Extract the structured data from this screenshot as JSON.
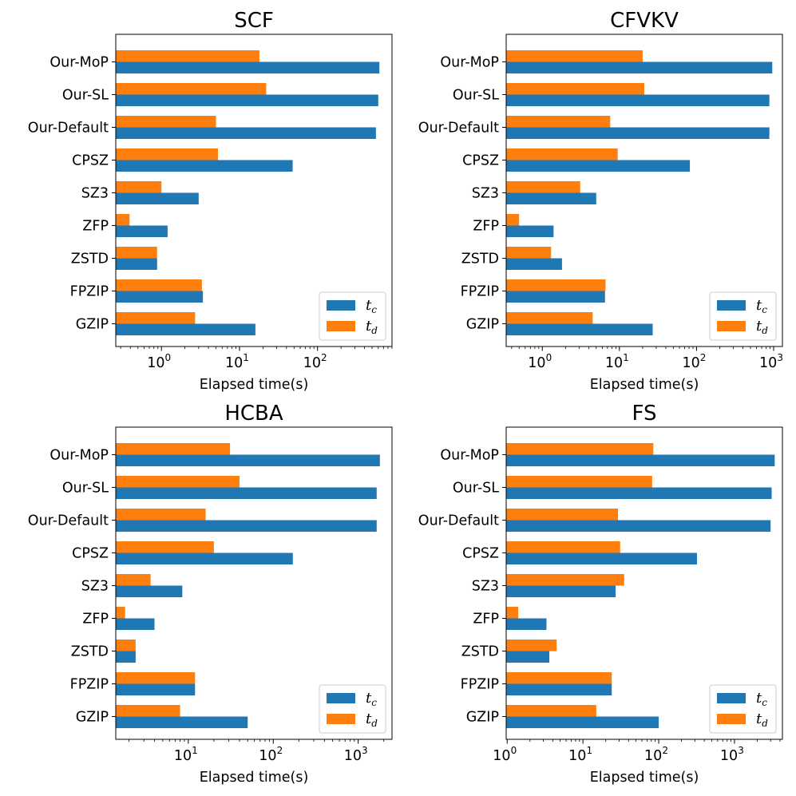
{
  "colors": {
    "t_c": "#1f77b4",
    "t_d": "#ff7f0e",
    "axis": "#000000",
    "legend_border": "#cccccc"
  },
  "chart_data": [
    {
      "type": "bar",
      "orientation": "horizontal",
      "title": "SCF",
      "xlabel": "Elapsed time(s)",
      "ylabel": "",
      "xscale": "log",
      "xlim": [
        0.26,
        900
      ],
      "xticks": [
        {
          "base": "10",
          "exp": "0",
          "value": 1
        },
        {
          "base": "10",
          "exp": "1",
          "value": 10
        },
        {
          "base": "10",
          "exp": "2",
          "value": 100
        }
      ],
      "legend_location": "lower right",
      "categories": [
        "Our-MoP",
        "Our-SL",
        "Our-Default",
        "CPSZ",
        "SZ3",
        "ZFP",
        "ZSTD",
        "FPZIP",
        "GZIP"
      ],
      "series": [
        {
          "name": "t_c",
          "label": "t",
          "sub": "c",
          "values": [
            620,
            600,
            560,
            48,
            3.0,
            1.2,
            0.88,
            3.4,
            16
          ]
        },
        {
          "name": "t_d",
          "label": "t",
          "sub": "d",
          "values": [
            18,
            22,
            5.0,
            5.3,
            1.0,
            0.39,
            0.88,
            3.3,
            2.7
          ]
        }
      ]
    },
    {
      "type": "bar",
      "orientation": "horizontal",
      "title": "CFVKV",
      "xlabel": "Elapsed time(s)",
      "ylabel": "",
      "xscale": "log",
      "xlim": [
        0.34,
        1300
      ],
      "xticks": [
        {
          "base": "10",
          "exp": "0",
          "value": 1
        },
        {
          "base": "10",
          "exp": "1",
          "value": 10
        },
        {
          "base": "10",
          "exp": "2",
          "value": 100
        },
        {
          "base": "10",
          "exp": "3",
          "value": 1000
        }
      ],
      "legend_location": "lower right",
      "categories": [
        "Our-MoP",
        "Our-SL",
        "Our-Default",
        "CPSZ",
        "SZ3",
        "ZFP",
        "ZSTD",
        "FPZIP",
        "GZIP"
      ],
      "series": [
        {
          "name": "t_c",
          "label": "t",
          "sub": "c",
          "values": [
            960,
            880,
            880,
            82,
            5.0,
            1.4,
            1.8,
            6.5,
            27
          ]
        },
        {
          "name": "t_d",
          "label": "t",
          "sub": "d",
          "values": [
            20,
            21,
            7.6,
            9.5,
            3.1,
            0.5,
            1.3,
            6.6,
            4.5
          ]
        }
      ]
    },
    {
      "type": "bar",
      "orientation": "horizontal",
      "title": "HCBA",
      "xlabel": "Elapsed time(s)",
      "ylabel": "",
      "xscale": "log",
      "xlim": [
        1.4,
        2500
      ],
      "xticks": [
        {
          "base": "10",
          "exp": "1",
          "value": 10
        },
        {
          "base": "10",
          "exp": "2",
          "value": 100
        },
        {
          "base": "10",
          "exp": "3",
          "value": 1000
        }
      ],
      "legend_location": "lower right",
      "categories": [
        "Our-MoP",
        "Our-SL",
        "Our-Default",
        "CPSZ",
        "SZ3",
        "ZFP",
        "ZSTD",
        "FPZIP",
        "GZIP"
      ],
      "series": [
        {
          "name": "t_c",
          "label": "t",
          "sub": "c",
          "values": [
            1800,
            1650,
            1650,
            170,
            8.5,
            4.0,
            2.4,
            12,
            50
          ]
        },
        {
          "name": "t_d",
          "label": "t",
          "sub": "d",
          "values": [
            31,
            40,
            16,
            20,
            3.6,
            1.8,
            2.4,
            12,
            8.0
          ]
        }
      ]
    },
    {
      "type": "bar",
      "orientation": "horizontal",
      "title": "FS",
      "xlabel": "Elapsed time(s)",
      "ylabel": "",
      "xscale": "log",
      "xlim": [
        0.97,
        4300
      ],
      "xticks": [
        {
          "base": "10",
          "exp": "0",
          "value": 1
        },
        {
          "base": "10",
          "exp": "1",
          "value": 10
        },
        {
          "base": "10",
          "exp": "2",
          "value": 100
        },
        {
          "base": "10",
          "exp": "3",
          "value": 1000
        }
      ],
      "legend_location": "lower right",
      "categories": [
        "Our-MoP",
        "Our-SL",
        "Our-Default",
        "CPSZ",
        "SZ3",
        "ZFP",
        "ZSTD",
        "FPZIP",
        "GZIP"
      ],
      "series": [
        {
          "name": "t_c",
          "label": "t",
          "sub": "c",
          "values": [
            3400,
            3100,
            3000,
            320,
            27,
            3.3,
            3.6,
            24,
            100
          ]
        },
        {
          "name": "t_d",
          "label": "t",
          "sub": "d",
          "values": [
            85,
            82,
            29,
            31,
            35,
            1.4,
            4.5,
            24,
            15
          ]
        }
      ]
    }
  ]
}
